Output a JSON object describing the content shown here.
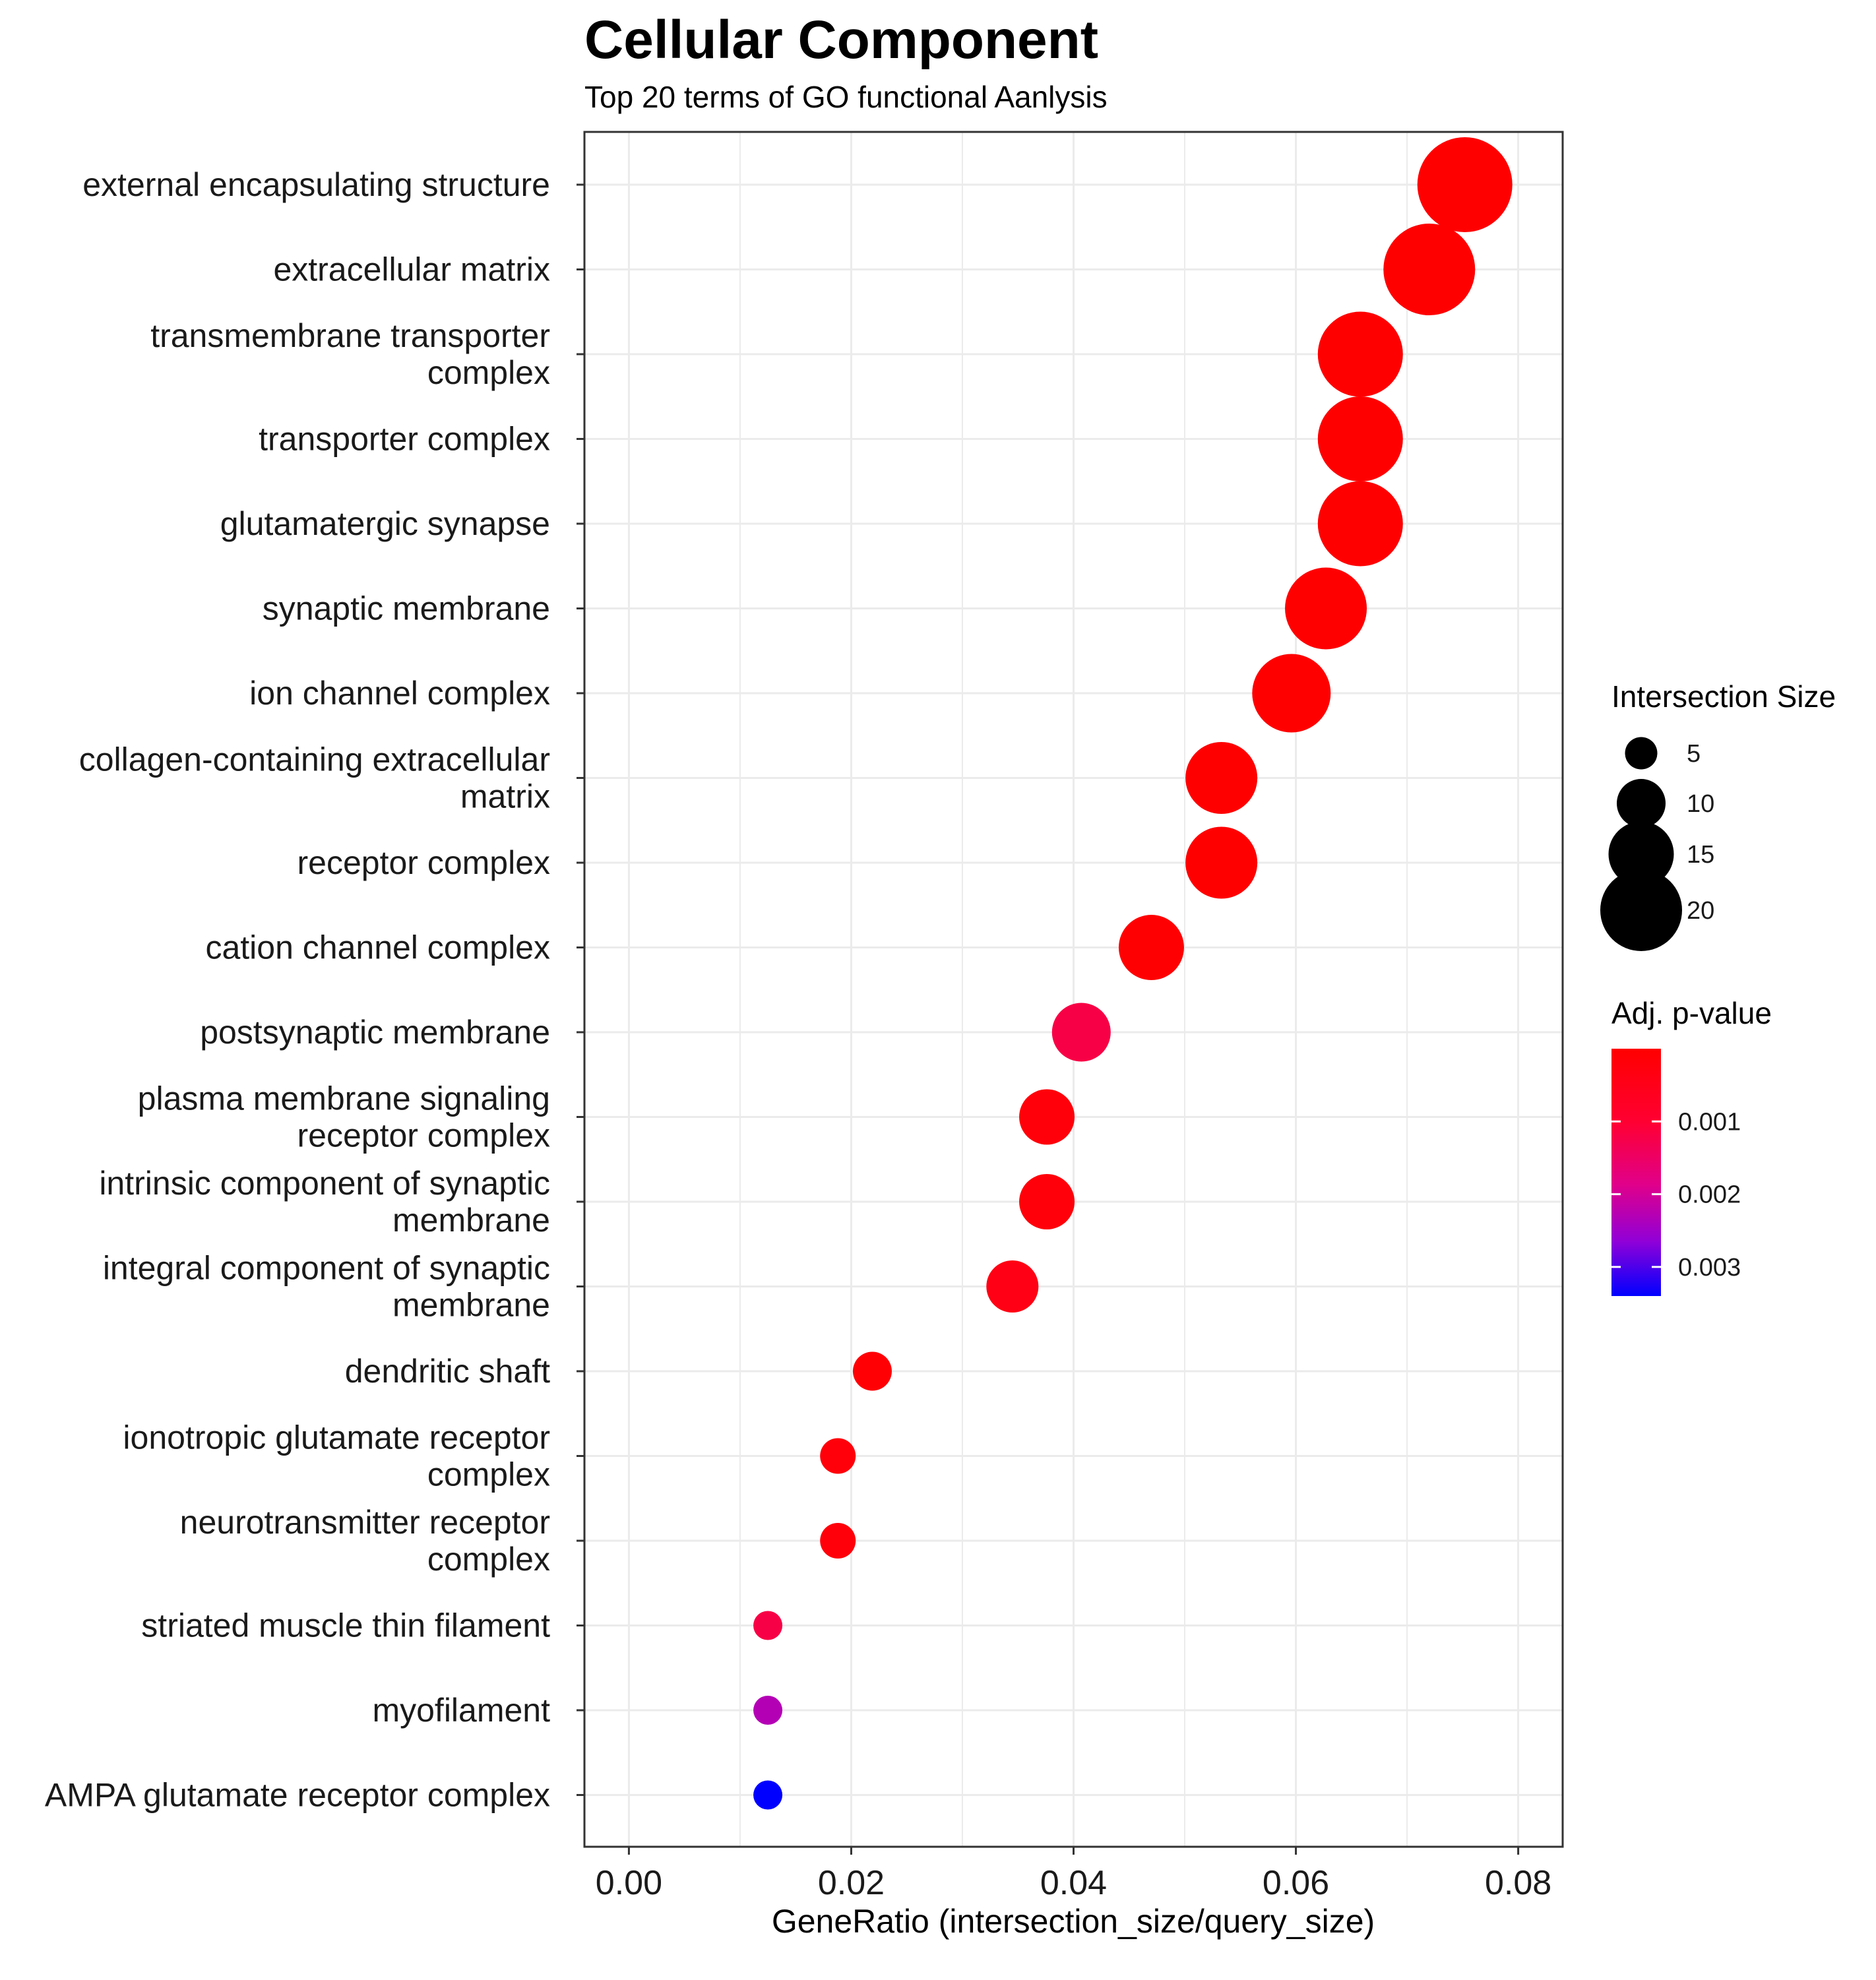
{
  "chart_data": {
    "type": "scatter",
    "title": "Cellular Component",
    "subtitle": "Top 20 terms of GO functional Aanlysis",
    "xlabel": "GeneRatio (intersection_size/query_size)",
    "ylabel": "",
    "xlim": [
      -0.004,
      0.084
    ],
    "x_ticks": [
      0.0,
      0.02,
      0.04,
      0.06,
      0.08
    ],
    "x_tick_labels": [
      "0.00",
      "0.02",
      "0.04",
      "0.06",
      "0.08"
    ],
    "grid": true,
    "categories": [
      "external encapsulating structure",
      "extracellular matrix",
      "transmembrane transporter complex",
      "transporter complex",
      "glutamatergic synapse",
      "synaptic membrane",
      "ion channel complex",
      "collagen-containing extracellular matrix",
      "receptor complex",
      "cation channel complex",
      "postsynaptic membrane",
      "plasma membrane signaling receptor complex",
      "intrinsic component of synaptic membrane",
      "integral component of synaptic membrane",
      "dendritic shaft",
      "ionotropic glutamate receptor complex",
      "neurotransmitter receptor complex",
      "striated muscle thin filament",
      "myofilament",
      "AMPA glutamate receptor complex"
    ],
    "category_label_lines": [
      [
        "external encapsulating structure"
      ],
      [
        "extracellular matrix"
      ],
      [
        "transmembrane transporter",
        "complex"
      ],
      [
        "transporter complex"
      ],
      [
        "glutamatergic synapse"
      ],
      [
        "synaptic membrane"
      ],
      [
        "ion channel complex"
      ],
      [
        "collagen-containing extracellular",
        "matrix"
      ],
      [
        "receptor complex"
      ],
      [
        "cation channel complex"
      ],
      [
        "postsynaptic membrane"
      ],
      [
        "plasma membrane signaling",
        "receptor complex"
      ],
      [
        "intrinsic component of synaptic",
        "membrane"
      ],
      [
        "integral component of synaptic",
        "membrane"
      ],
      [
        "dendritic shaft"
      ],
      [
        "ionotropic glutamate receptor",
        "complex"
      ],
      [
        "neurotransmitter receptor",
        "complex"
      ],
      [
        "striated muscle thin filament"
      ],
      [
        "myofilament"
      ],
      [
        "AMPA glutamate receptor complex"
      ]
    ],
    "gene_ratio": [
      0.0752,
      0.072,
      0.0658,
      0.0658,
      0.0658,
      0.0627,
      0.0596,
      0.0533,
      0.0533,
      0.047,
      0.0407,
      0.0376,
      0.0376,
      0.0345,
      0.0219,
      0.0188,
      0.0188,
      0.0125,
      0.0125,
      0.0125
    ],
    "intersection_size": [
      24,
      23,
      21,
      21,
      21,
      20,
      19,
      17,
      17,
      15,
      13,
      12,
      12,
      11,
      7,
      6,
      6,
      4,
      4,
      4
    ],
    "adj_p_value": [
      1e-05,
      1e-05,
      1e-05,
      1e-05,
      1e-05,
      1e-05,
      2e-05,
      2e-05,
      2e-05,
      4e-05,
      0.0012,
      0.0002,
      0.0002,
      0.0004,
      0.0001,
      0.0002,
      0.0002,
      0.0012,
      0.0023,
      0.0034
    ],
    "legend_size": {
      "title": "Intersection Size",
      "values": [
        5,
        10,
        15,
        20
      ],
      "labels": [
        "5",
        "10",
        "15",
        "20"
      ]
    },
    "legend_color": {
      "title": "Adj. p-value",
      "range": [
        0.0,
        0.0034
      ],
      "ticks": [
        0.001,
        0.002,
        0.003
      ],
      "tick_labels": [
        "0.001",
        "0.002",
        "0.003"
      ],
      "low_color": "#FF0000",
      "high_color": "#0000FF"
    },
    "legend_position": "right",
    "colors": {
      "grid": "#EBEBEB",
      "panel_border": "#333333",
      "tick": "#333333"
    }
  }
}
